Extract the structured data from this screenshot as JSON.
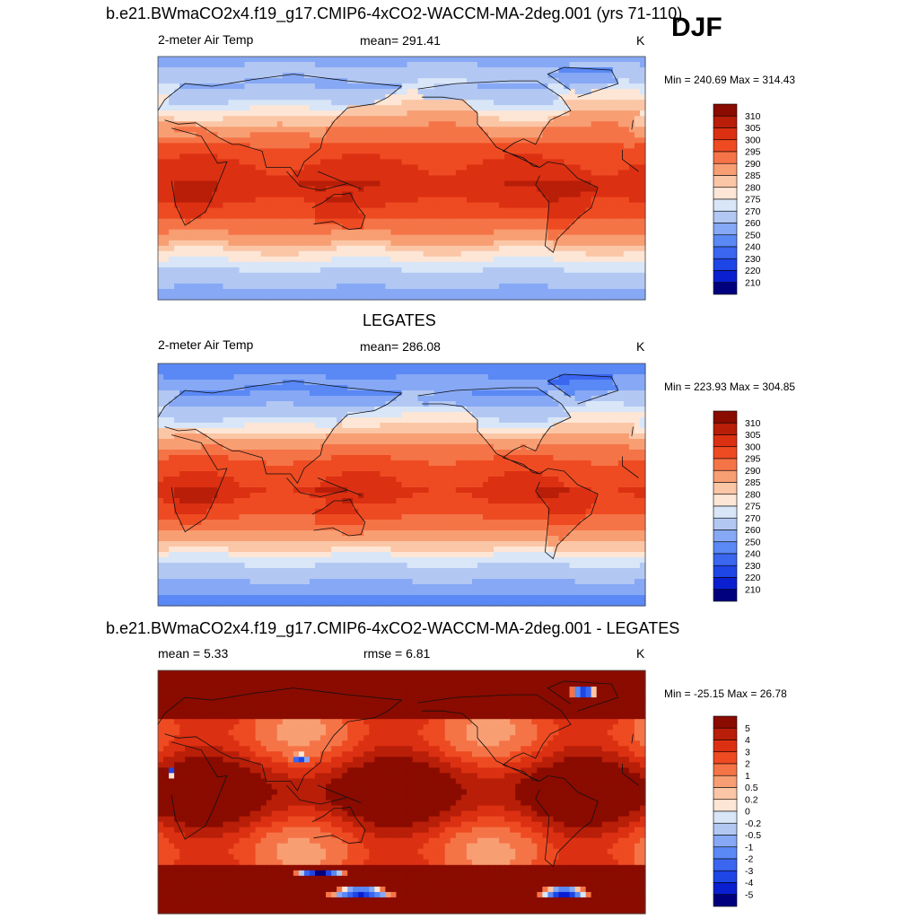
{
  "season": "DJF",
  "colors": {
    "temp": [
      "#00007f",
      "#0a1fd0",
      "#1e45e6",
      "#3a66f0",
      "#5a88f5",
      "#86a8f5",
      "#b2c8f3",
      "#d8e6f8",
      "#fde6d6",
      "#fbc6a6",
      "#f89e73",
      "#f57447",
      "#ee4b22",
      "#dc3012",
      "#b81e08",
      "#8a0b00"
    ],
    "diff": [
      "#00007f",
      "#0a1fd0",
      "#1e45e6",
      "#3a66f0",
      "#5a88f5",
      "#86a8f5",
      "#b2c8f3",
      "#d8e6f8",
      "#fde6d6",
      "#fbc6a6",
      "#f89e73",
      "#f57447",
      "#ee4b22",
      "#dc3012",
      "#b81e08",
      "#8a0b00"
    ]
  },
  "panels": [
    {
      "title": "b.e21.BWmaCO2x4.f19_g17.CMIP6-4xCO2-WACCM-MA-2deg.001 (yrs 71-110)",
      "left_label": "2-meter Air Temp",
      "center_label": "mean= 291.41",
      "unit": "K",
      "minmax": "Min = 240.69 Max = 314.43",
      "kind": "temp",
      "field": {
        "pole_n": 255,
        "pole_s": 252,
        "trop": 302
      },
      "levels": [
        "310",
        "305",
        "300",
        "295",
        "290",
        "285",
        "280",
        "275",
        "270",
        "260",
        "250",
        "240",
        "230",
        "220",
        "210"
      ]
    },
    {
      "title": "LEGATES",
      "left_label": "2-meter Air Temp",
      "center_label": "mean= 286.08",
      "unit": "K",
      "minmax": "Min = 223.93 Max = 304.85",
      "kind": "temp",
      "field": {
        "pole_n": 240,
        "pole_s": 242,
        "trop": 300
      },
      "levels": [
        "310",
        "305",
        "300",
        "295",
        "290",
        "285",
        "280",
        "275",
        "270",
        "260",
        "250",
        "240",
        "230",
        "220",
        "210"
      ]
    },
    {
      "title": "b.e21.BWmaCO2x4.f19_g17.CMIP6-4xCO2-WACCM-MA-2deg.001 - LEGATES",
      "left_label": "mean =   5.33",
      "center_label": "rmse =   6.81",
      "unit": "K",
      "minmax": "Min = -25.15 Max =  26.78",
      "kind": "diff",
      "field": {
        "base": 4
      },
      "levels": [
        "5",
        "4",
        "3",
        "2",
        "1",
        "0.5",
        "0.2",
        "0",
        "-0.2",
        "-0.5",
        "-1",
        "-2",
        "-3",
        "-4",
        "-5"
      ]
    }
  ]
}
